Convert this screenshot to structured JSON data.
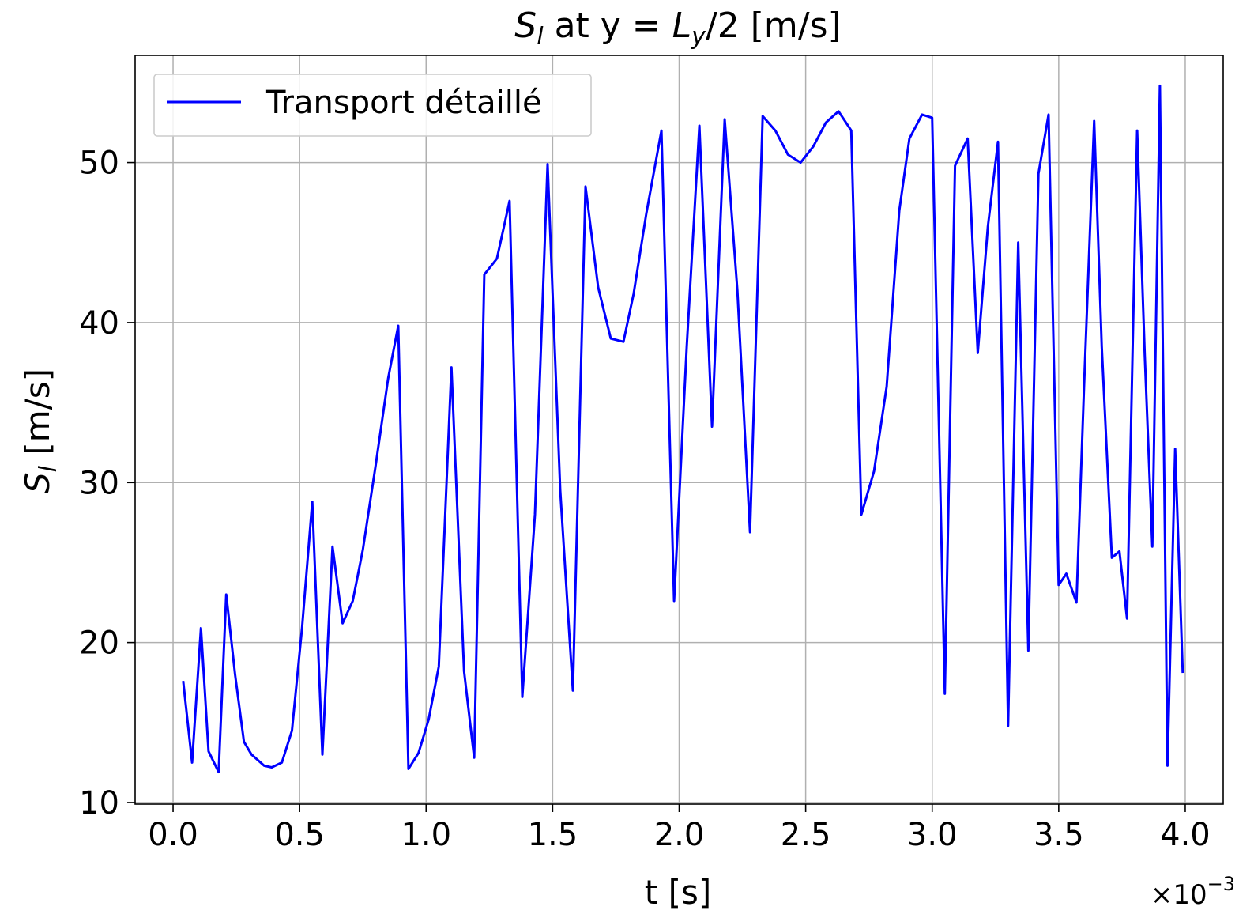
{
  "chart_data": {
    "type": "line",
    "title_parts": [
      {
        "text": "S",
        "style": "italic",
        "sub": false
      },
      {
        "text": "l",
        "style": "italic",
        "sub": true
      },
      {
        "text": " at y = ",
        "style": "normal",
        "sub": false
      },
      {
        "text": "L",
        "style": "italic",
        "sub": false
      },
      {
        "text": "y",
        "style": "italic",
        "sub": true
      },
      {
        "text": "/2 [m/s]",
        "style": "normal",
        "sub": false
      }
    ],
    "xlabel": "t [s]",
    "ylabel_parts": [
      {
        "text": "S",
        "style": "italic",
        "sub": false
      },
      {
        "text": "l",
        "style": "italic",
        "sub": true
      },
      {
        "text": " [m/s]",
        "style": "normal",
        "sub": false
      }
    ],
    "x_offset_text": "×10",
    "x_offset_exponent": "−3",
    "xlim": [
      -0.15,
      4.15
    ],
    "ylim": [
      9.9,
      56.7
    ],
    "x_scale_note": "x values in units of 1e-3 s",
    "xticks": [
      0.0,
      0.5,
      1.0,
      1.5,
      2.0,
      2.5,
      3.0,
      3.5,
      4.0
    ],
    "xtick_labels": [
      "0.0",
      "0.5",
      "1.0",
      "1.5",
      "2.0",
      "2.5",
      "3.0",
      "3.5",
      "4.0"
    ],
    "yticks": [
      10,
      20,
      30,
      40,
      50
    ],
    "ytick_labels": [
      "10",
      "20",
      "30",
      "40",
      "50"
    ],
    "grid": true,
    "legend_position": "top-left",
    "series": [
      {
        "name": "Transport détaillé",
        "color": "#0000ff",
        "x": [
          0.04,
          0.075,
          0.11,
          0.14,
          0.18,
          0.21,
          0.245,
          0.28,
          0.31,
          0.36,
          0.39,
          0.43,
          0.47,
          0.51,
          0.55,
          0.59,
          0.63,
          0.67,
          0.71,
          0.75,
          0.8,
          0.85,
          0.89,
          0.93,
          0.97,
          1.01,
          1.05,
          1.1,
          1.15,
          1.19,
          1.23,
          1.28,
          1.33,
          1.38,
          1.43,
          1.48,
          1.53,
          1.58,
          1.63,
          1.68,
          1.73,
          1.78,
          1.82,
          1.87,
          1.93,
          1.98,
          2.03,
          2.08,
          2.13,
          2.18,
          2.23,
          2.28,
          2.33,
          2.38,
          2.43,
          2.48,
          2.53,
          2.58,
          2.63,
          2.68,
          2.72,
          2.77,
          2.82,
          2.87,
          2.91,
          2.96,
          3.0,
          3.05,
          3.09,
          3.14,
          3.18,
          3.22,
          3.26,
          3.3,
          3.34,
          3.38,
          3.42,
          3.46,
          3.5,
          3.53,
          3.57,
          3.6,
          3.64,
          3.67,
          3.71,
          3.74,
          3.77,
          3.81,
          3.84,
          3.87,
          3.9,
          3.93,
          3.96,
          3.99
        ],
        "y": [
          17.6,
          12.5,
          20.9,
          13.2,
          11.9,
          23.0,
          18.0,
          13.8,
          13.0,
          12.3,
          12.2,
          12.5,
          14.5,
          21.0,
          28.8,
          13.0,
          26.0,
          21.2,
          22.6,
          25.8,
          31.0,
          36.5,
          39.8,
          12.1,
          13.1,
          15.2,
          18.5,
          37.2,
          18.2,
          12.8,
          43.0,
          44.0,
          47.6,
          16.6,
          28.0,
          49.9,
          29.5,
          17.0,
          48.5,
          42.2,
          39.0,
          38.8,
          41.8,
          46.8,
          52.0,
          22.6,
          38.5,
          52.3,
          33.5,
          52.7,
          42.0,
          26.9,
          52.9,
          52.0,
          50.5,
          50.0,
          51.0,
          52.5,
          53.2,
          52.0,
          28.0,
          30.7,
          36.0,
          47.0,
          51.5,
          53.0,
          52.8,
          16.8,
          49.8,
          51.5,
          38.1,
          46.0,
          51.3,
          14.8,
          45.0,
          19.5,
          49.3,
          53.0,
          23.6,
          24.3,
          22.5,
          36.0,
          52.6,
          38.5,
          25.3,
          25.7,
          21.5,
          52.0,
          38.0,
          26.0,
          54.8,
          12.3,
          32.1,
          18.1
        ]
      }
    ]
  }
}
